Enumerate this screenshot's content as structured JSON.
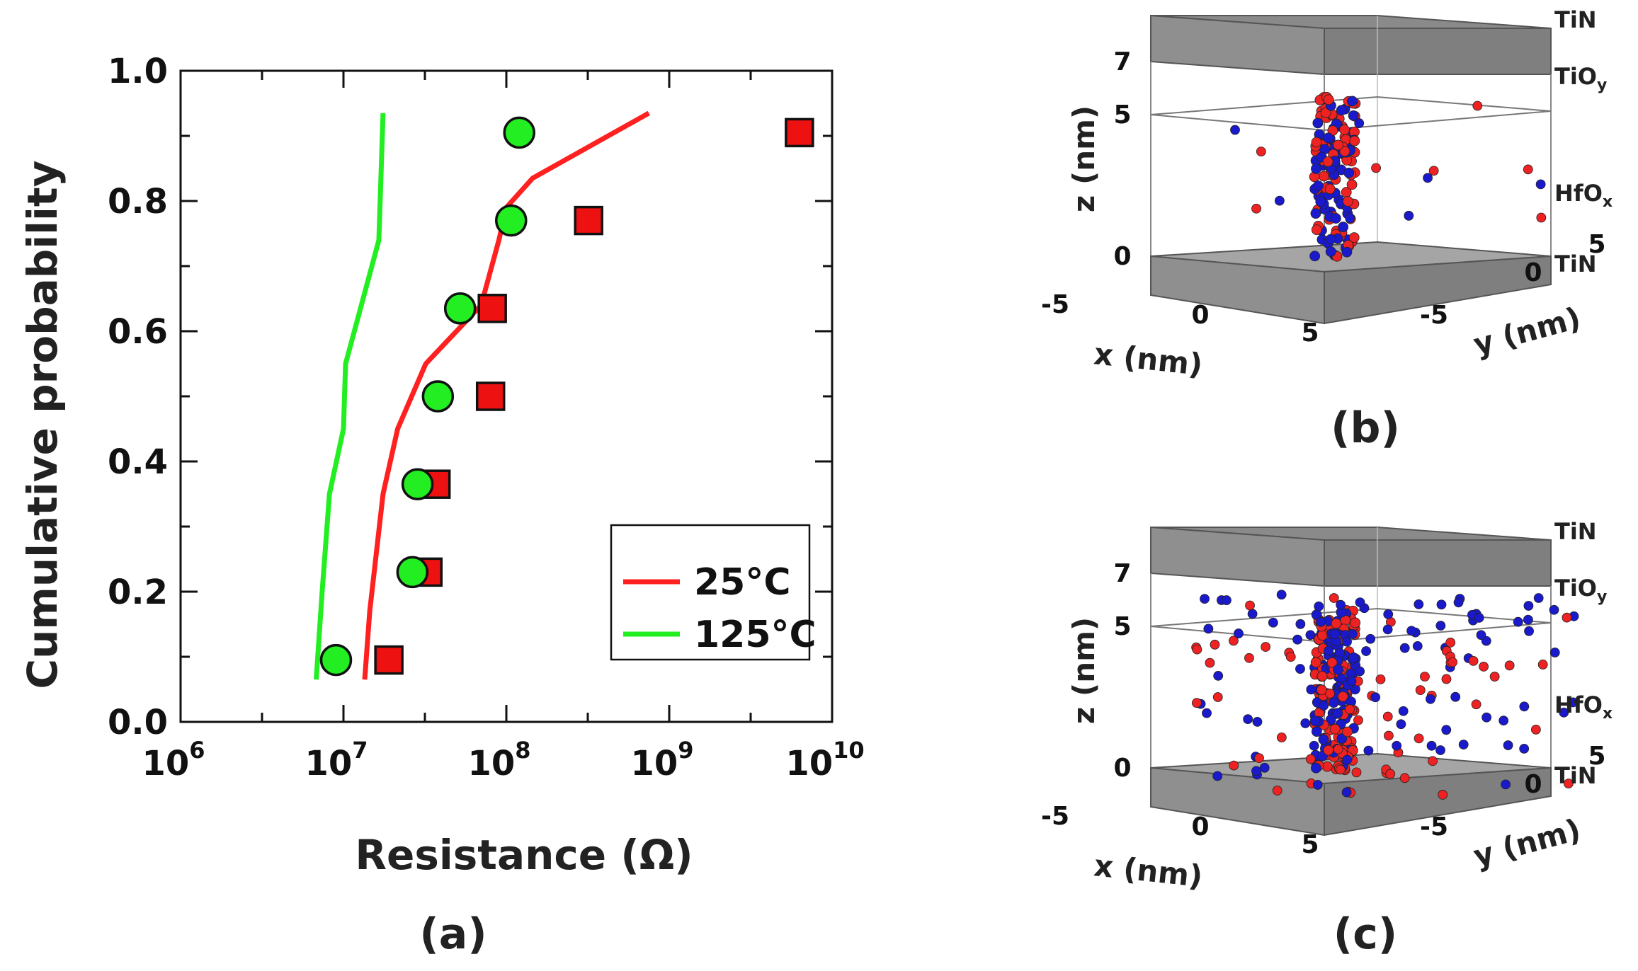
{
  "chart_data": [
    {
      "panel": "(a)",
      "type": "scatter",
      "xscale": "log",
      "xlim": [
        1000000,
        10000000000
      ],
      "ylim": [
        0.0,
        1.0
      ],
      "xlabel": "Resistance (Ω)",
      "ylabel": "Cumulative probability",
      "yticks": [
        "0.0",
        "0.2",
        "0.4",
        "0.6",
        "0.8",
        "1.0"
      ],
      "xticks": [
        {
          "base": "10",
          "exp": "6"
        },
        {
          "base": "10",
          "exp": "7"
        },
        {
          "base": "10",
          "exp": "8"
        },
        {
          "base": "10",
          "exp": "9"
        },
        {
          "base": "10",
          "exp": "10"
        }
      ],
      "legend": {
        "placement": "lower-right",
        "entries": [
          {
            "label": "25°C",
            "color": "#ff2020"
          },
          {
            "label": "125°C",
            "color": "#22ee22"
          }
        ]
      },
      "series": [
        {
          "name": "25°C simulated",
          "kind": "line",
          "color": "#ff2020",
          "x": [
            13500000,
            14500000,
            17500000,
            21500000,
            32000000,
            70000000,
            90000000,
            100000000,
            145000000,
            750000000
          ],
          "y": [
            0.065,
            0.17,
            0.35,
            0.45,
            0.55,
            0.64,
            0.74,
            0.79,
            0.835,
            0.935
          ]
        },
        {
          "name": "125°C simulated",
          "kind": "line",
          "color": "#22ee22",
          "x": [
            6800000,
            7400000,
            8200000,
            10000000,
            10300000,
            16500000,
            17500000
          ],
          "y": [
            0.065,
            0.2,
            0.35,
            0.45,
            0.55,
            0.74,
            0.935
          ]
        },
        {
          "name": "25°C measured",
          "kind": "marker",
          "marker": "square",
          "color": "#ee1111",
          "x": [
            19000000,
            33000000,
            37000000,
            80000000,
            82000000,
            320000000,
            6300000000
          ],
          "y": [
            0.095,
            0.23,
            0.365,
            0.5,
            0.635,
            0.77,
            0.905
          ]
        },
        {
          "name": "125°C measured",
          "kind": "marker",
          "marker": "circle",
          "color": "#22ee22",
          "x": [
            9000000,
            26500000,
            28500000,
            38000000,
            52000000,
            107000000,
            120000000
          ],
          "y": [
            0.095,
            0.23,
            0.365,
            0.5,
            0.635,
            0.77,
            0.905
          ]
        }
      ]
    },
    {
      "panel": "(b)",
      "type": "scatter",
      "variant": "3d",
      "xlabel": "x (nm)",
      "ylabel": "y (nm)",
      "zlabel": "z (nm)",
      "z_ticks": [
        "0",
        "5",
        "7"
      ],
      "x_ticks": [
        "-5",
        "0",
        "5"
      ],
      "y_ticks": [
        "5",
        "0",
        "-5"
      ],
      "layers": [
        "TiN",
        "TiO",
        "HfO",
        "TiN"
      ],
      "layer_subscripts": [
        "",
        "y",
        "x",
        ""
      ],
      "point_colors": {
        "red": "#ee2222",
        "blue": "#1a1acc"
      }
    },
    {
      "panel": "(c)",
      "type": "scatter",
      "variant": "3d",
      "xlabel": "x (nm)",
      "ylabel": "y (nm)",
      "zlabel": "z (nm)",
      "z_ticks": [
        "0",
        "5",
        "7"
      ],
      "x_ticks": [
        "-5",
        "0",
        "5"
      ],
      "y_ticks": [
        "5",
        "0",
        "-5"
      ],
      "layers": [
        "TiN",
        "TiO",
        "HfO",
        "TiN"
      ],
      "layer_subscripts": [
        "",
        "y",
        "x",
        ""
      ],
      "point_colors": {
        "red": "#ee2222",
        "blue": "#1a1acc"
      }
    }
  ],
  "labels": {
    "a": "(a)",
    "b": "(b)",
    "c": "(c)"
  }
}
